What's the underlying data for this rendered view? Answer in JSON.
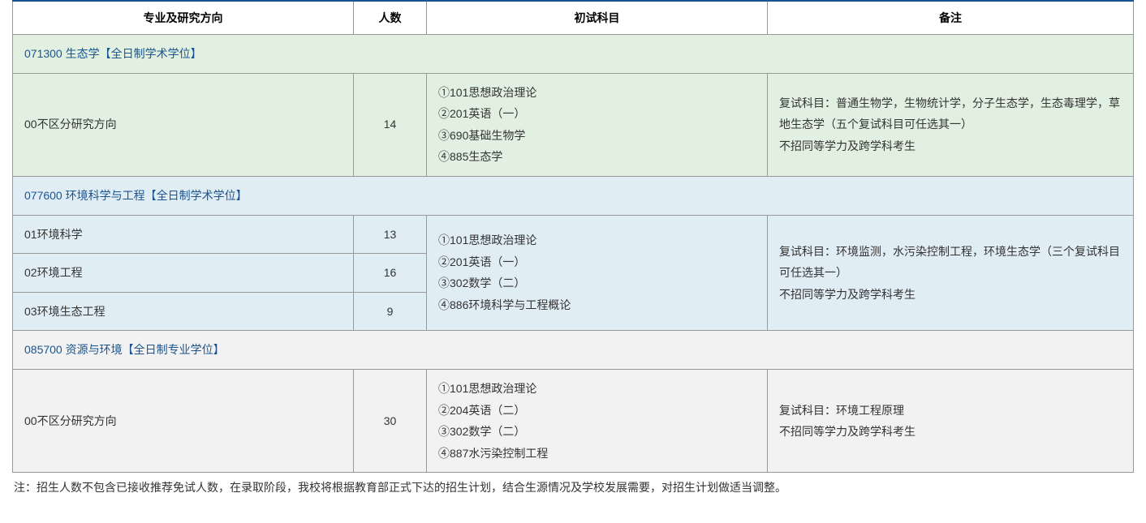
{
  "headers": {
    "major": "专业及研究方向",
    "count": "人数",
    "subject": "初试科目",
    "remark": "备注"
  },
  "sections": [
    {
      "header": "071300 生态学【全日制学术学位】",
      "bgClass": "section-green",
      "rows": [
        {
          "major": "00不区分研究方向",
          "count": "14",
          "subjects": "①101思想政治理论\n②201英语（一）\n③690基础生物学\n④885生态学",
          "remark": "复试科目：普通生物学，生物统计学，分子生态学，生态毒理学，草地生态学（五个复试科目可任选其一）\n不招同等学力及跨学科考生"
        }
      ]
    },
    {
      "header": "077600 环境科学与工程【全日制学术学位】",
      "bgClass": "section-blue",
      "subjectMerged": "①101思想政治理论\n②201英语（一）\n③302数学（二）\n④886环境科学与工程概论",
      "remarkMerged": "复试科目：环境监测，水污染控制工程，环境生态学（三个复试科目可任选其一）\n不招同等学力及跨学科考生",
      "rows": [
        {
          "major": "01环境科学",
          "count": "13"
        },
        {
          "major": "02环境工程",
          "count": "16"
        },
        {
          "major": "03环境生态工程",
          "count": "9"
        }
      ]
    },
    {
      "header": "085700 资源与环境【全日制专业学位】",
      "bgClass": "section-gray",
      "rows": [
        {
          "major": "00不区分研究方向",
          "count": "30",
          "subjects": "①101思想政治理论\n②204英语（二）\n③302数学（二）\n④887水污染控制工程",
          "remark": "复试科目：环境工程原理\n不招同等学力及跨学科考生"
        }
      ]
    }
  ],
  "footnote": "注：招生人数不包含已接收推荐免试人数，在录取阶段，我校将根据教育部正式下达的招生计划，结合生源情况及学校发展需要，对招生计划做适当调整。",
  "styling": {
    "header_border_top_color": "#1a5490",
    "border_color": "#999999",
    "section_header_text_color": "#1a5490",
    "colors": {
      "green": "#e1f0e1",
      "blue": "#e1edf5",
      "gray": "#f2f2f2"
    }
  }
}
